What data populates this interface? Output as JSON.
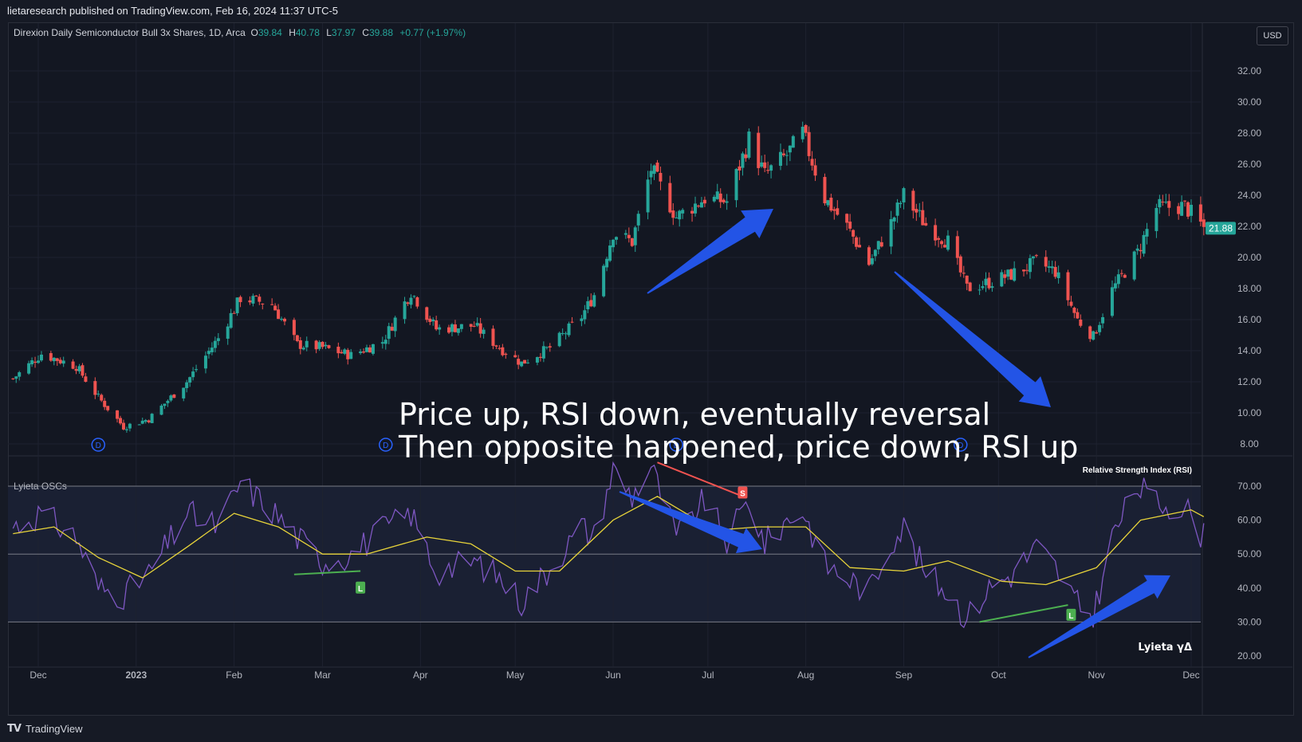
{
  "header": {
    "published": "lietaresearch published on TradingView.com, Feb 16, 2024 11:37 UTC-5"
  },
  "legend": {
    "symbol": "Direxion Daily Semiconductor Bull 3x Shares, 1D, Arca",
    "o_label": "O",
    "o_value": "39.84",
    "h_label": "H",
    "h_value": "40.78",
    "l_label": "L",
    "l_value": "37.97",
    "c_label": "C",
    "c_value": "39.88",
    "change": "+0.77 (+1.97%)"
  },
  "currency_button": "USD",
  "oscillator": {
    "title": "Lyieta OSCs",
    "indicator_name": "Relative Strength Index (RSI)",
    "brand_label": "Lyieta γΔ",
    "signals": [
      {
        "text": "L",
        "color": "#4caf50"
      },
      {
        "text": "S",
        "color": "#f05350"
      },
      {
        "text": "L",
        "color": "#4caf50"
      }
    ]
  },
  "annotation": {
    "line1": "Price up, RSI down, eventually reversal",
    "line2": "Then opposite happened, price down, RSI up"
  },
  "footer": {
    "brand": "TradingView",
    "logo": "TV"
  },
  "colors": {
    "up": "#26a69a",
    "down": "#ef5350",
    "rsi": "#7e57c2",
    "rsi_ma": "#e8d43a",
    "arrow": "#2354e6",
    "last_price_badge": "#26a69a"
  },
  "chart_data": [
    {
      "type": "candlestick",
      "title": "",
      "currency": "USD",
      "last_price": "21.88",
      "ylim": [
        7.0,
        34.0
      ],
      "y_ticks": [
        "8.00",
        "10.00",
        "12.00",
        "14.00",
        "16.00",
        "18.00",
        "20.00",
        "22.00",
        "24.00",
        "26.00",
        "28.00",
        "30.00",
        "32.00"
      ],
      "x_tick_labels": [
        "Dec",
        "2023",
        "Feb",
        "Mar",
        "Apr",
        "May",
        "Jun",
        "Jul",
        "Aug",
        "Sep",
        "Oct",
        "Nov",
        "Dec"
      ],
      "x_tick_dates": [
        "2022-12-01",
        "2023-01-01",
        "2023-02-01",
        "2023-03-01",
        "2023-04-01",
        "2023-05-01",
        "2023-06-01",
        "2023-07-01",
        "2023-08-01",
        "2023-09-01",
        "2023-10-01",
        "2023-11-01",
        "2023-12-01"
      ],
      "dividend_markers": {
        "label": "D",
        "dates": [
          "2022-12-20",
          "2023-03-21",
          "2023-06-21",
          "2023-09-19"
        ]
      },
      "close_series": {
        "dates": [
          "2022-11-23",
          "2022-12-02",
          "2022-12-13",
          "2022-12-20",
          "2022-12-28",
          "2023-01-05",
          "2023-01-17",
          "2023-01-27",
          "2023-02-03",
          "2023-02-13",
          "2023-02-21",
          "2023-03-01",
          "2023-03-10",
          "2023-03-20",
          "2023-03-29",
          "2023-04-06",
          "2023-04-18",
          "2023-04-26",
          "2023-05-03",
          "2023-05-12",
          "2023-05-22",
          "2023-05-26",
          "2023-06-01",
          "2023-06-07",
          "2023-06-13",
          "2023-06-21",
          "2023-06-30",
          "2023-07-07",
          "2023-07-14",
          "2023-07-19",
          "2023-07-26",
          "2023-07-31",
          "2023-08-07",
          "2023-08-14",
          "2023-08-21",
          "2023-08-28",
          "2023-09-01",
          "2023-09-08",
          "2023-09-15",
          "2023-09-21",
          "2023-09-28",
          "2023-10-05",
          "2023-10-13",
          "2023-10-19",
          "2023-10-26",
          "2023-10-31",
          "2023-11-06",
          "2023-11-14",
          "2023-11-20",
          "2023-11-29",
          "2023-12-05"
        ],
        "values": [
          12.2,
          13.8,
          13.0,
          11.0,
          9.1,
          9.6,
          12.0,
          14.8,
          17.4,
          17.0,
          14.4,
          14.2,
          13.7,
          14.6,
          17.8,
          15.4,
          15.6,
          14.2,
          13.2,
          14.2,
          16.2,
          17.6,
          21.6,
          21.0,
          25.7,
          22.6,
          23.8,
          23.6,
          27.6,
          25.3,
          26.6,
          28.0,
          23.8,
          22.0,
          19.6,
          22.2,
          24.0,
          22.1,
          21.0,
          18.0,
          18.4,
          18.9,
          19.7,
          19.1,
          16.0,
          14.9,
          17.9,
          20.3,
          23.2,
          23.3,
          21.9
        ]
      }
    },
    {
      "type": "line",
      "title": "Relative Strength Index (RSI)",
      "ylim": [
        18,
        73
      ],
      "y_ticks": [
        "20.00",
        "30.00",
        "40.00",
        "50.00",
        "60.00",
        "70.00"
      ],
      "bands": [
        30,
        50,
        70
      ],
      "series": [
        {
          "name": "RSI",
          "dates": [
            "2022-11-23",
            "2022-12-02",
            "2022-12-13",
            "2022-12-20",
            "2022-12-28",
            "2023-01-05",
            "2023-01-17",
            "2023-01-27",
            "2023-02-03",
            "2023-02-13",
            "2023-02-21",
            "2023-03-01",
            "2023-03-10",
            "2023-03-20",
            "2023-03-29",
            "2023-04-06",
            "2023-04-18",
            "2023-04-26",
            "2023-05-03",
            "2023-05-12",
            "2023-05-22",
            "2023-05-26",
            "2023-06-01",
            "2023-06-07",
            "2023-06-13",
            "2023-06-21",
            "2023-06-30",
            "2023-07-07",
            "2023-07-14",
            "2023-07-19",
            "2023-07-26",
            "2023-07-31",
            "2023-08-07",
            "2023-08-14",
            "2023-08-21",
            "2023-08-28",
            "2023-09-01",
            "2023-09-08",
            "2023-09-15",
            "2023-09-21",
            "2023-09-28",
            "2023-10-05",
            "2023-10-13",
            "2023-10-19",
            "2023-10-26",
            "2023-10-31",
            "2023-11-06",
            "2023-11-14",
            "2023-11-20",
            "2023-11-29",
            "2023-12-05"
          ],
          "values": [
            58,
            62,
            55,
            40,
            38,
            44,
            62,
            58,
            71,
            63,
            55,
            48,
            50,
            57,
            62,
            45,
            48,
            43,
            36,
            46,
            58,
            55,
            75,
            67,
            76,
            55,
            66,
            54,
            66,
            53,
            60,
            63,
            47,
            43,
            39,
            54,
            58,
            44,
            39,
            31,
            40,
            44,
            52,
            46,
            35,
            32,
            55,
            70,
            65,
            64,
            55
          ]
        },
        {
          "name": "RSI MA",
          "dates": [
            "2022-11-23",
            "2022-12-06",
            "2022-12-20",
            "2023-01-03",
            "2023-01-17",
            "2023-02-01",
            "2023-02-15",
            "2023-03-01",
            "2023-03-15",
            "2023-04-03",
            "2023-04-17",
            "2023-05-01",
            "2023-05-15",
            "2023-06-01",
            "2023-06-15",
            "2023-07-03",
            "2023-07-17",
            "2023-08-01",
            "2023-08-15",
            "2023-09-01",
            "2023-09-15",
            "2023-10-02",
            "2023-10-16",
            "2023-11-01",
            "2023-11-15",
            "2023-12-01",
            "2023-12-05"
          ],
          "values": [
            56,
            58,
            49,
            43,
            52,
            62,
            58,
            50,
            50,
            55,
            53,
            45,
            45,
            60,
            67,
            57,
            58,
            58,
            46,
            45,
            48,
            42,
            41,
            46,
            60,
            63,
            61
          ]
        }
      ]
    }
  ]
}
